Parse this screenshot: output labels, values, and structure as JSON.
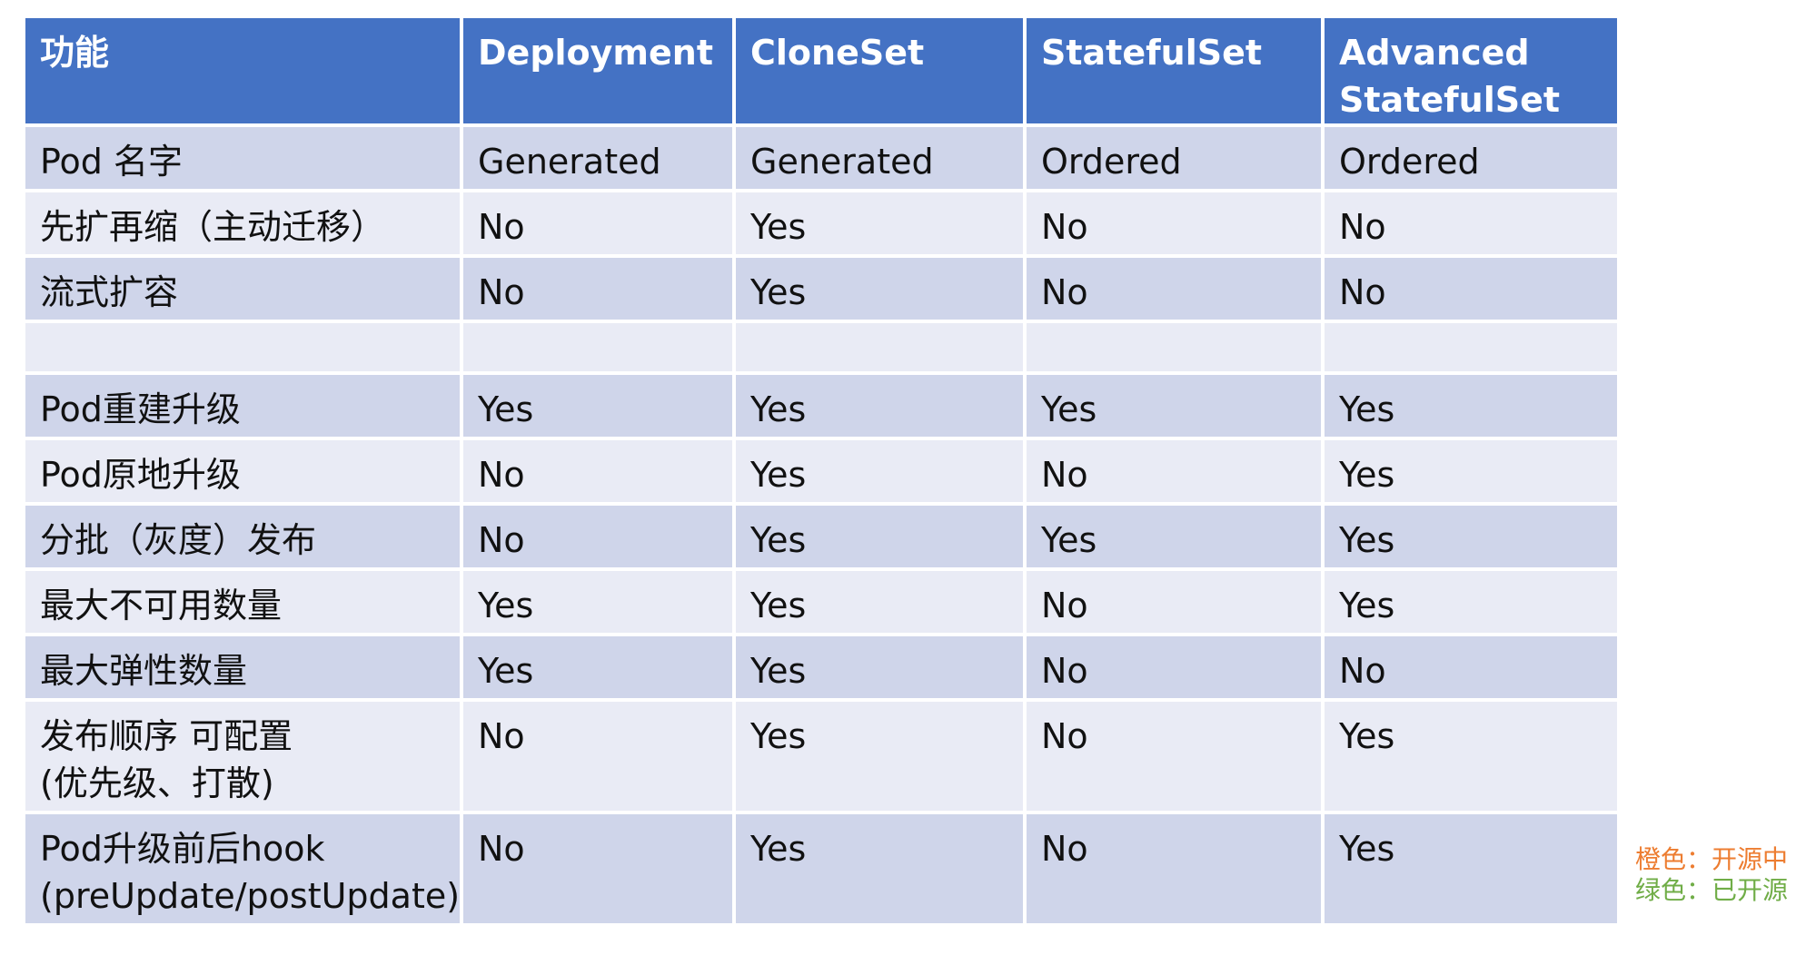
{
  "colors": {
    "header_bg": "#4472c4",
    "row_dark": "#cfd5ea",
    "row_light": "#e9ebf5",
    "default": "#111111",
    "orange": "#ed7d31",
    "green": "#70ad47",
    "red": "#ff0000",
    "white": "#ffffff"
  },
  "table": {
    "columns": [
      {
        "label": "功能",
        "color": "white"
      },
      {
        "label": "Deployment",
        "color": "white"
      },
      {
        "label": "CloneSet",
        "color": "red"
      },
      {
        "label": "StatefulSet",
        "color": "white"
      },
      {
        "label": "Advanced StatefulSet",
        "color": "red"
      }
    ],
    "rows": [
      {
        "feature": "Pod 名字",
        "cells": [
          {
            "text": "Generated",
            "color": "default"
          },
          {
            "text": "Generated",
            "color": "default"
          },
          {
            "text": "Ordered",
            "color": "default"
          },
          {
            "text": "Ordered",
            "color": "default"
          }
        ]
      },
      {
        "feature": "先扩再缩（主动迁移）",
        "cells": [
          {
            "text": "No",
            "color": "default"
          },
          {
            "text": "Yes",
            "color": "orange"
          },
          {
            "text": "No",
            "color": "default"
          },
          {
            "text": "No",
            "color": "default"
          }
        ]
      },
      {
        "feature": "流式扩容",
        "cells": [
          {
            "text": "No",
            "color": "default"
          },
          {
            "text": "Yes",
            "color": "orange"
          },
          {
            "text": "No",
            "color": "default"
          },
          {
            "text": "No",
            "color": "default"
          }
        ]
      },
      {
        "feature": "",
        "cells": [
          {
            "text": "",
            "color": "default"
          },
          {
            "text": "",
            "color": "default"
          },
          {
            "text": "",
            "color": "default"
          },
          {
            "text": "",
            "color": "default"
          }
        ]
      },
      {
        "feature": "Pod重建升级",
        "cells": [
          {
            "text": "Yes",
            "color": "default"
          },
          {
            "text": "Yes",
            "color": "default"
          },
          {
            "text": "Yes",
            "color": "default"
          },
          {
            "text": "Yes",
            "color": "default"
          }
        ]
      },
      {
        "feature": "Pod原地升级",
        "cells": [
          {
            "text": "No",
            "color": "default"
          },
          {
            "text": "Yes",
            "color": "green"
          },
          {
            "text": "No",
            "color": "default"
          },
          {
            "text": "Yes",
            "color": "green"
          }
        ]
      },
      {
        "feature": "分批（灰度）发布",
        "cells": [
          {
            "text": "No",
            "color": "default"
          },
          {
            "text": "Yes",
            "color": "green"
          },
          {
            "text": "Yes",
            "color": "green"
          },
          {
            "text": "Yes",
            "color": "green"
          }
        ]
      },
      {
        "feature": "最大不可用数量",
        "cells": [
          {
            "text": "Yes",
            "color": "green"
          },
          {
            "text": "Yes",
            "color": "green"
          },
          {
            "text": "No",
            "color": "default"
          },
          {
            "text": "Yes",
            "color": "green"
          }
        ]
      },
      {
        "feature": "最大弹性数量",
        "cells": [
          {
            "text": "Yes",
            "color": "green"
          },
          {
            "text": "Yes",
            "color": "green"
          },
          {
            "text": "No",
            "color": "default"
          },
          {
            "text": "No",
            "color": "default"
          }
        ]
      },
      {
        "feature": "发布顺序 可配置\n(优先级、打散)",
        "cells": [
          {
            "text": "No",
            "color": "default"
          },
          {
            "text": "Yes",
            "color": "green"
          },
          {
            "text": "No",
            "color": "default"
          },
          {
            "text": "Yes",
            "color": "green"
          }
        ]
      },
      {
        "feature": "Pod升级前后hook\n(preUpdate/postUpdate)",
        "cells": [
          {
            "text": "No",
            "color": "default"
          },
          {
            "text": "Yes",
            "color": "orange"
          },
          {
            "text": "No",
            "color": "default"
          },
          {
            "text": "Yes",
            "color": "orange"
          }
        ]
      }
    ]
  },
  "legend": [
    {
      "text": "橙色：开源中",
      "color": "orange"
    },
    {
      "text": "绿色：已开源",
      "color": "green"
    }
  ]
}
